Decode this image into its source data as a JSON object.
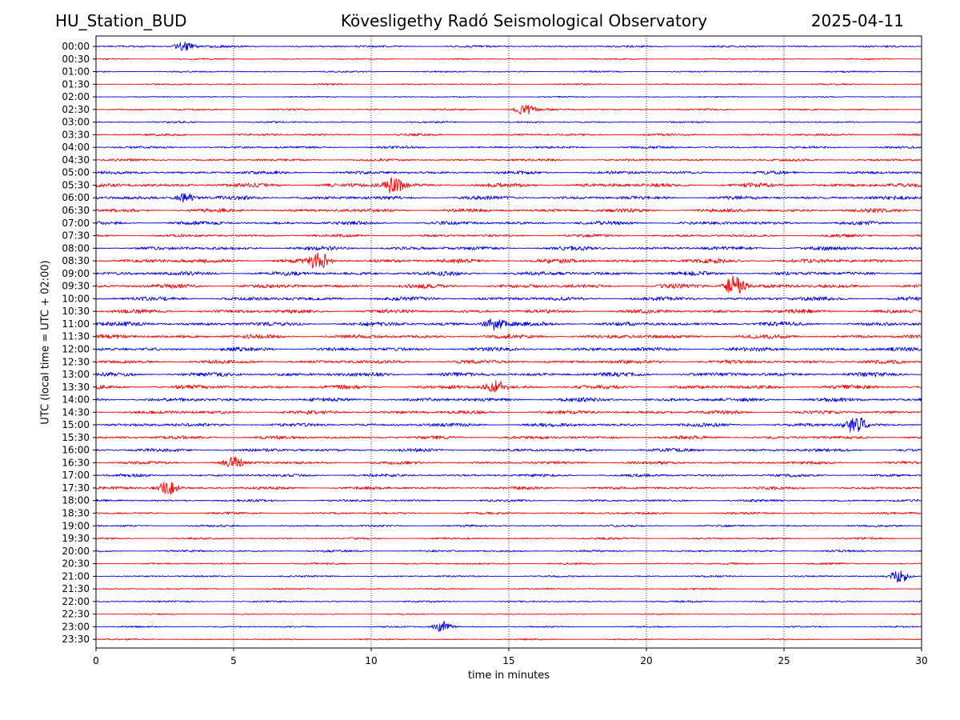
{
  "header": {
    "station": "HU_Station_BUD",
    "observatory": "Kövesligethy Radó Seismological Observatory",
    "date": "2025-04-11"
  },
  "chart_data": {
    "type": "line",
    "title": "Kövesligethy Radó Seismological Observatory",
    "xlabel": "time in minutes",
    "ylabel": "UTC (local time = UTC + 02:00)",
    "xlim": [
      0,
      30
    ],
    "x_ticks": [
      "0",
      "5",
      "10",
      "15",
      "20",
      "25",
      "30"
    ],
    "grid": "vertical dotted lines at 5-minute intervals",
    "row_labels": [
      "00:00",
      "00:30",
      "01:00",
      "01:30",
      "02:00",
      "02:30",
      "03:00",
      "03:30",
      "04:00",
      "04:30",
      "05:00",
      "05:30",
      "06:00",
      "06:30",
      "07:00",
      "07:30",
      "08:00",
      "08:30",
      "09:00",
      "09:30",
      "10:00",
      "10:30",
      "11:00",
      "11:30",
      "12:00",
      "12:30",
      "13:00",
      "13:30",
      "14:00",
      "14:30",
      "15:00",
      "15:30",
      "16:00",
      "16:30",
      "17:00",
      "17:30",
      "18:00",
      "18:30",
      "19:00",
      "19:30",
      "20:00",
      "20:30",
      "21:00",
      "21:30",
      "22:00",
      "22:30",
      "23:00",
      "23:30"
    ],
    "colors": [
      "#0000ee",
      "#ff0000"
    ],
    "noise_level": [
      0.3,
      0.2,
      0.22,
      0.22,
      0.18,
      0.26,
      0.25,
      0.32,
      0.34,
      0.34,
      0.46,
      0.58,
      0.52,
      0.52,
      0.5,
      0.4,
      0.55,
      0.62,
      0.58,
      0.58,
      0.55,
      0.55,
      0.58,
      0.55,
      0.55,
      0.52,
      0.58,
      0.55,
      0.55,
      0.5,
      0.5,
      0.48,
      0.46,
      0.42,
      0.4,
      0.42,
      0.34,
      0.32,
      0.3,
      0.28,
      0.3,
      0.26,
      0.25,
      0.22,
      0.25,
      0.16,
      0.22,
      0.2
    ],
    "events": [
      {
        "row": 0,
        "minute": 3.2,
        "amp": 0.9
      },
      {
        "row": 5,
        "minute": 15.6,
        "amp": 1.1
      },
      {
        "row": 11,
        "minute": 10.8,
        "amp": 1.6
      },
      {
        "row": 12,
        "minute": 3.3,
        "amp": 1.0
      },
      {
        "row": 17,
        "minute": 8.1,
        "amp": 1.6
      },
      {
        "row": 19,
        "minute": 23.2,
        "amp": 2.2
      },
      {
        "row": 22,
        "minute": 14.5,
        "amp": 1.2
      },
      {
        "row": 27,
        "minute": 14.5,
        "amp": 1.3
      },
      {
        "row": 30,
        "minute": 27.6,
        "amp": 1.8
      },
      {
        "row": 33,
        "minute": 5.0,
        "amp": 1.0
      },
      {
        "row": 35,
        "minute": 2.6,
        "amp": 1.4
      },
      {
        "row": 42,
        "minute": 29.2,
        "amp": 1.2
      },
      {
        "row": 46,
        "minute": 12.6,
        "amp": 1.1
      }
    ]
  }
}
